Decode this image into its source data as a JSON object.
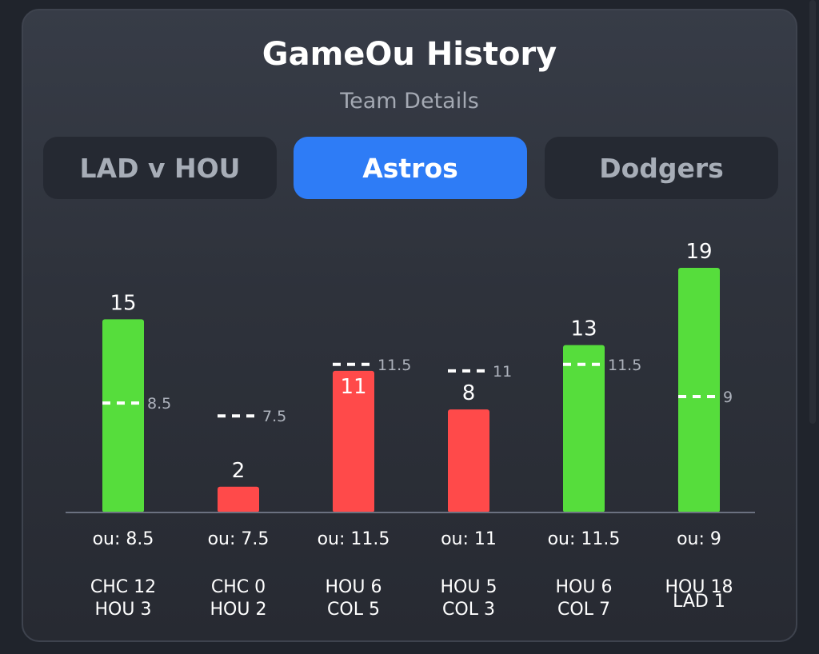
{
  "header": {
    "title": "GameOu History",
    "subtitle": "Team Details"
  },
  "tabs": [
    {
      "label": "LAD v HOU",
      "active": false
    },
    {
      "label": "Astros",
      "active": true
    },
    {
      "label": "Dodgers",
      "active": false
    }
  ],
  "colors": {
    "over": "#56dd3c",
    "under": "#ff4a4a",
    "active_tab": "#2e7cf6"
  },
  "chart_data": {
    "type": "bar",
    "title": "",
    "xlabel": "",
    "ylabel": "",
    "ylim": [
      0,
      19
    ],
    "grid": false,
    "categories": [
      "CHC 12 HOU 3",
      "CHC 0 HOU 2",
      "HOU 6 COL 5",
      "HOU 5 COL 3",
      "HOU 6 COL 7",
      "HOU 18 LAD 1"
    ],
    "bars": [
      {
        "total": 15,
        "ou": 8.5,
        "ou_label": "8.5",
        "ou_text": "ou: 8.5",
        "line1": "CHC 12",
        "line2": "HOU 3",
        "result": "over"
      },
      {
        "total": 2,
        "ou": 7.5,
        "ou_label": "7.5",
        "ou_text": "ou: 7.5",
        "line1": "CHC 0",
        "line2": "HOU 2",
        "result": "under"
      },
      {
        "total": 11,
        "ou": 11.5,
        "ou_label": "11.5",
        "ou_text": "ou: 11.5",
        "line1": "HOU 6",
        "line2": "COL 5",
        "result": "under"
      },
      {
        "total": 8,
        "ou": 11,
        "ou_label": "11",
        "ou_text": "ou: 11",
        "line1": "HOU 5",
        "line2": "COL 3",
        "result": "under"
      },
      {
        "total": 13,
        "ou": 11.5,
        "ou_label": "11.5",
        "ou_text": "ou: 11.5",
        "line1": "HOU 6",
        "line2": "COL 7",
        "result": "over"
      },
      {
        "total": 19,
        "ou": 9,
        "ou_label": "9",
        "ou_text": "ou: 9",
        "line1": "HOU 18",
        "line2": "LAD 1",
        "result": "over"
      }
    ]
  }
}
